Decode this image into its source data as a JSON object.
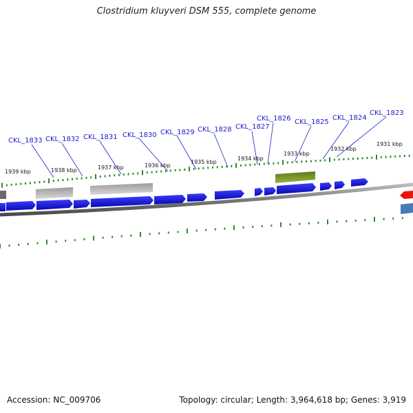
{
  "header": {
    "title": "Clostridium kluyveri DSM 555, complete genome"
  },
  "footer": {
    "accession": "Accession: NC_009706",
    "summary": "Topology: circular; Length: 3,964,618 bp; Genes: 3,919"
  },
  "gene_labels": [
    "CKL_1833",
    "CKL_1832",
    "CKL_1831",
    "CKL_1830",
    "CKL_1829",
    "CKL_1828",
    "CKL_1827",
    "CKL_1826",
    "CKL_1825",
    "CKL_1824",
    "CKL_1823"
  ],
  "tick_labels": [
    "1939 kbp",
    "1938 kbp",
    "1937 kbp",
    "1936 kbp",
    "1935 kbp",
    "1934 kbp",
    "1933 kbp",
    "1932 kbp",
    "1931 kbp"
  ],
  "colors": {
    "cds": "#1a1aee",
    "rna": "#b0b0b0",
    "highlight": "#7a9a2a",
    "backbone": "#888888",
    "tick": "#2a8a2a",
    "label": "#1a1acc",
    "red_feature": "#ee1111",
    "steel_feature": "#4a7ab8"
  }
}
